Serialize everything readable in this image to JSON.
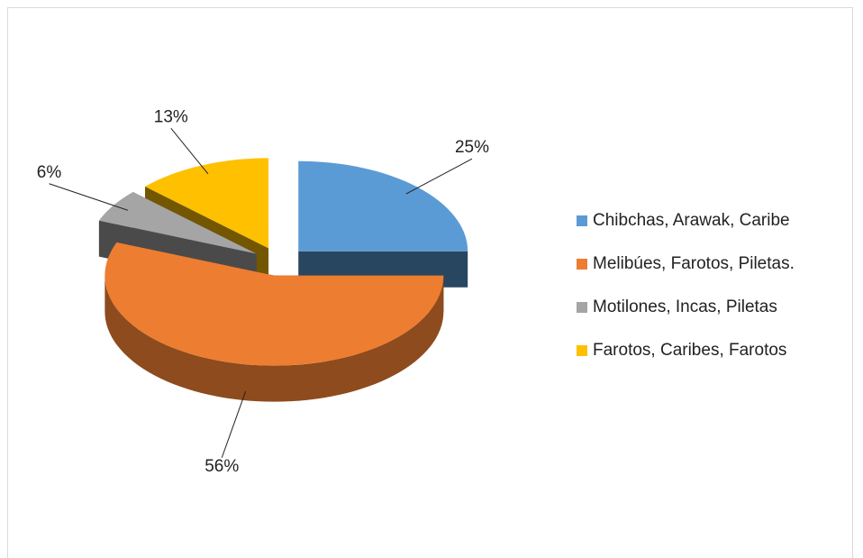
{
  "chart_data": {
    "type": "pie",
    "categories": [
      "Chibchas, Arawak, Caribe",
      "Melibúes, Farotos, Piletas.",
      "Motilones, Incas, Piletas",
      "Farotos, Caribes, Farotos"
    ],
    "values": [
      25,
      56,
      6,
      13
    ],
    "value_labels": [
      "25%",
      "56%",
      "6%",
      "13%"
    ],
    "colors": [
      "#5b9bd5",
      "#ed7d31",
      "#a5a5a5",
      "#ffc000"
    ],
    "legend": "right"
  }
}
